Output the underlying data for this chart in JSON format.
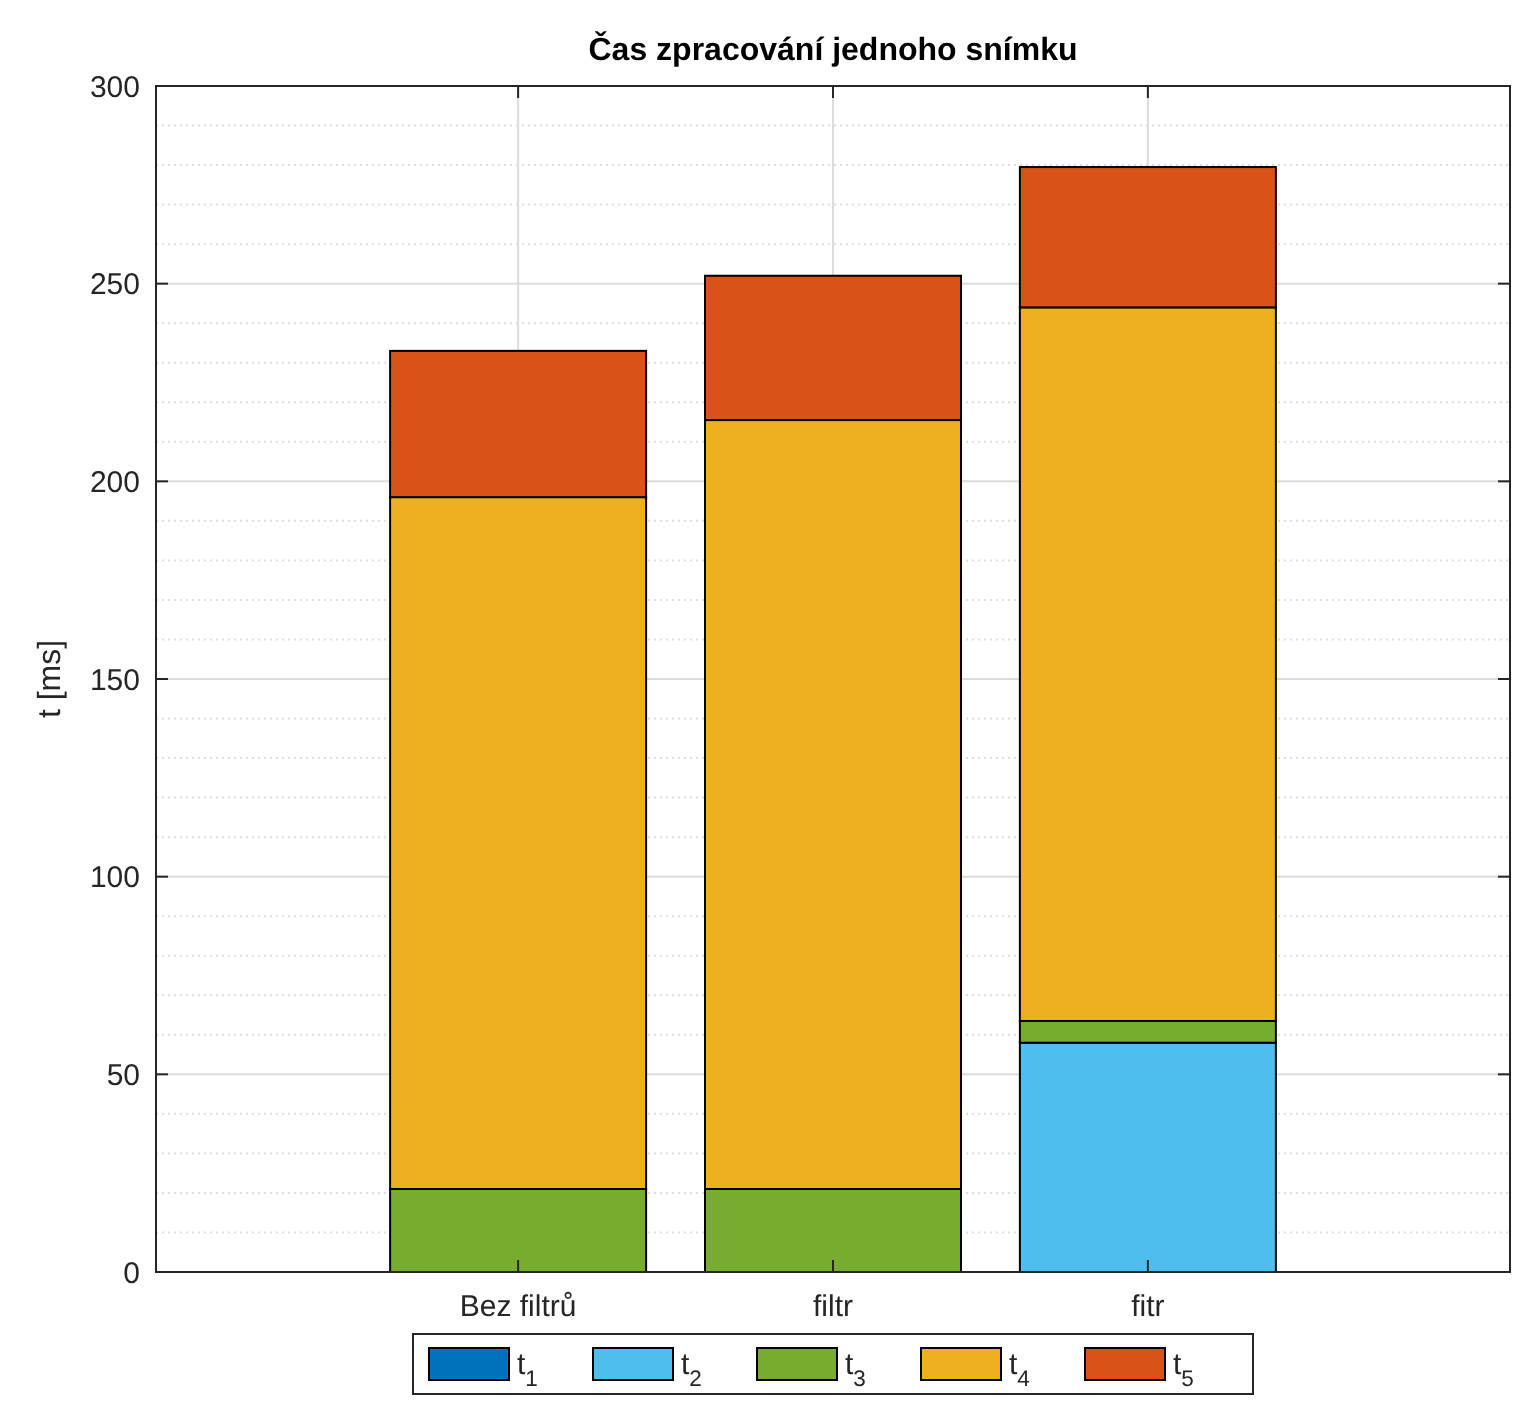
{
  "chart_data": {
    "type": "bar",
    "title": "Čas zpracování jednoho snímku",
    "ylabel": "t [ms]",
    "categories": [
      "Bez filtrů",
      "filtr",
      "fitr"
    ],
    "stacked": true,
    "ylim": [
      0,
      300
    ],
    "yticks": [
      0,
      50,
      100,
      150,
      200,
      250,
      300
    ],
    "grid": true,
    "legend": "bottom",
    "series": [
      {
        "name": "t$_{1}$",
        "color": "#0072bd",
        "values": [
          0,
          0,
          0
        ]
      },
      {
        "name": "t$_{2}$",
        "color": "#4dbeee",
        "values": [
          0,
          0,
          58
        ]
      },
      {
        "name": "t$_{3}$",
        "color": "#77ac30",
        "values": [
          21,
          21,
          5.5
        ]
      },
      {
        "name": "t$_{4}$",
        "color": "#edb120",
        "values": [
          175,
          194.5,
          180.5
        ]
      },
      {
        "name": "t$_{5}$",
        "color": "#d95319",
        "values": [
          37,
          36.5,
          35.5
        ]
      }
    ]
  }
}
